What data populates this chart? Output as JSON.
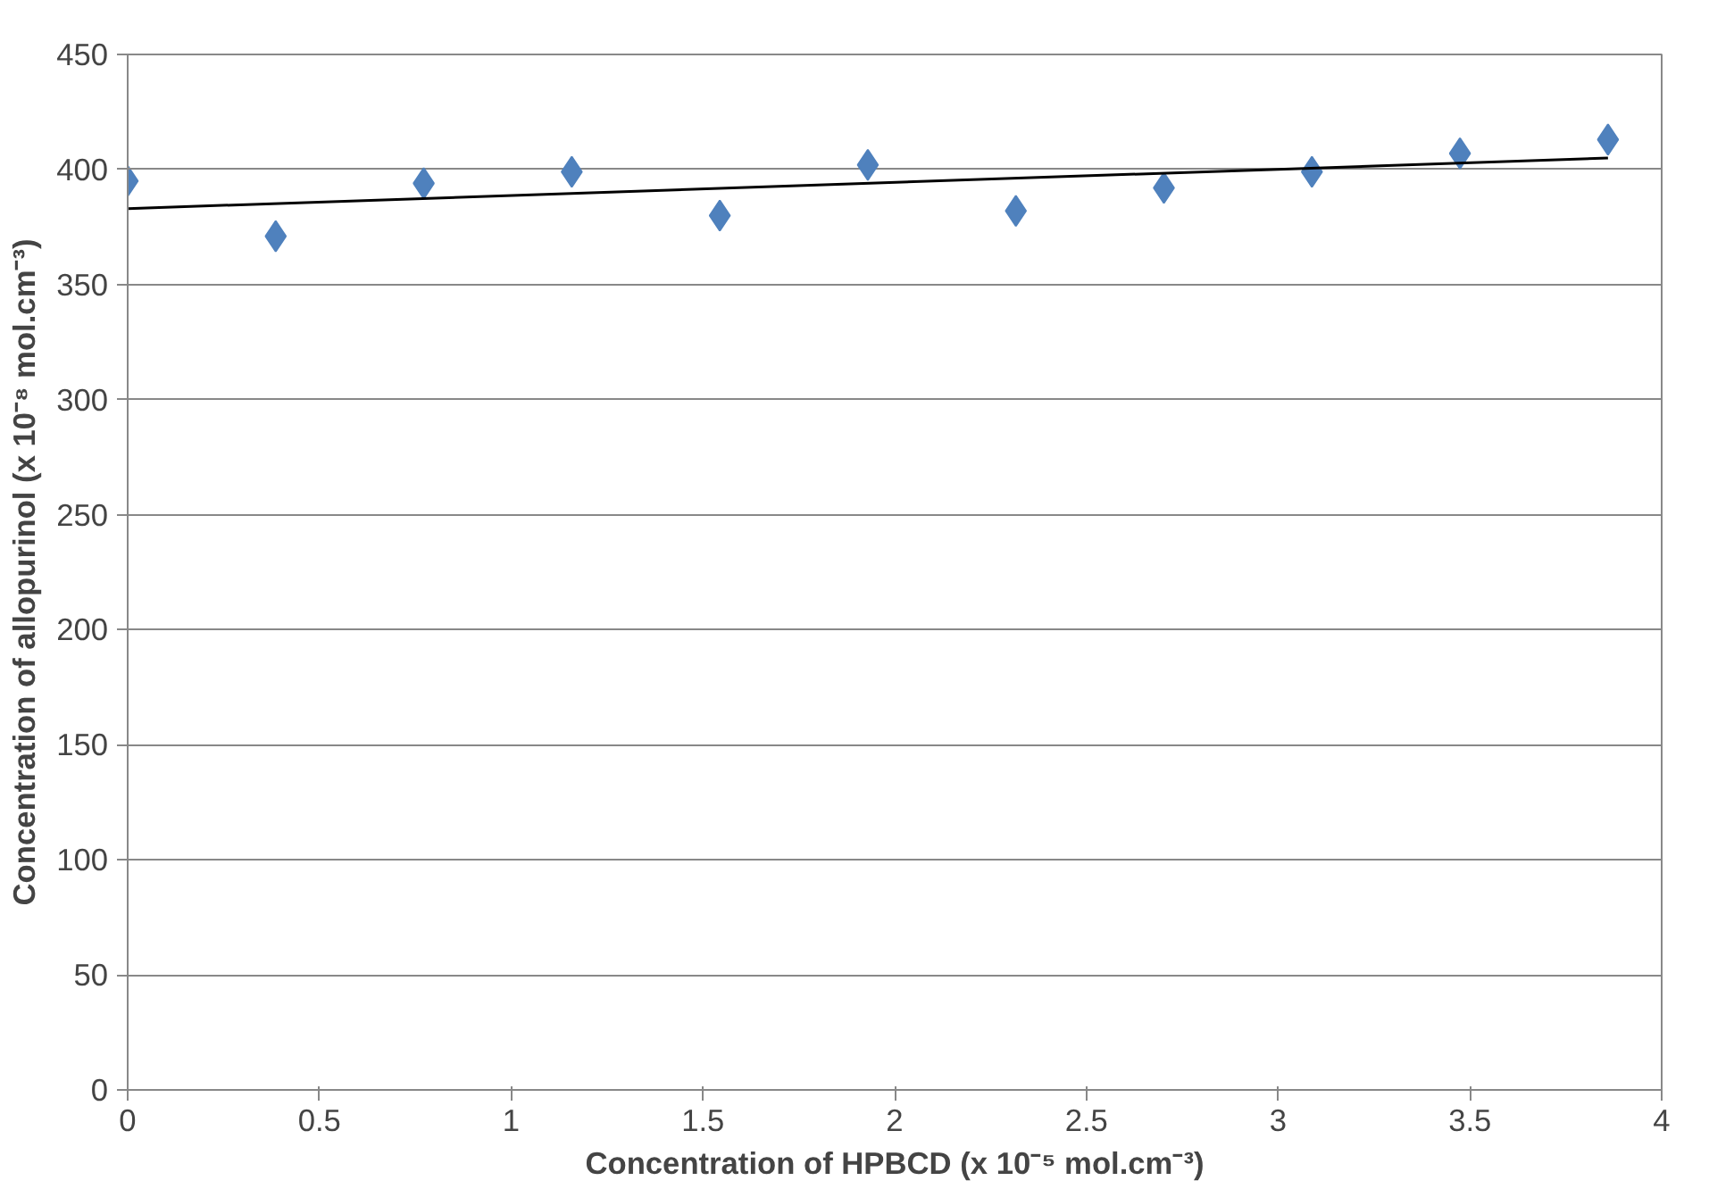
{
  "chart_data": {
    "type": "scatter",
    "xlabel": "Concentration of HPBCD (x 10⁻⁵ mol.cm⁻³)",
    "ylabel": "Concentration of allopurinol (x 10⁻⁸ mol.cm⁻³)",
    "xlim": [
      0,
      4
    ],
    "xticks": [
      0,
      0.5,
      1,
      1.5,
      2,
      2.5,
      3,
      3.5,
      4
    ],
    "ylim": [
      0,
      450
    ],
    "yticks": [
      0,
      50,
      100,
      150,
      200,
      250,
      300,
      350,
      400,
      450
    ],
    "grid": "y",
    "marker": "diamond",
    "series": [
      {
        "color": "#4f81bd",
        "x": [
          0,
          0.386,
          0.772,
          1.158,
          1.544,
          1.93,
          2.316,
          2.702,
          3.088,
          3.474,
          3.86
        ],
        "values": [
          395,
          371,
          394,
          399,
          380,
          402,
          382,
          392,
          399,
          407,
          413
        ]
      },
      {
        "type": "line",
        "marker": "none",
        "color": "#000000",
        "x": [
          0,
          3.86
        ],
        "values": [
          383,
          405
        ]
      }
    ]
  }
}
